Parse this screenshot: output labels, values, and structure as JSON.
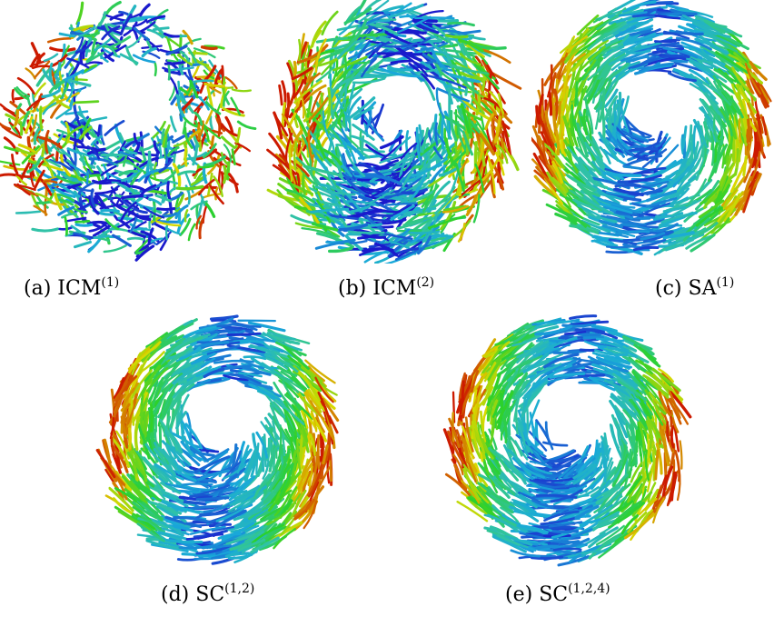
{
  "figure": {
    "panels": [
      {
        "letter": "(a)",
        "name": "ICM",
        "sup": "(1)",
        "style": "noisy"
      },
      {
        "letter": "(b)",
        "name": "ICM",
        "sup": "(2)",
        "style": "semi"
      },
      {
        "letter": "(c)",
        "name": "SA",
        "sup": "(1)",
        "style": "smooth"
      },
      {
        "letter": "(d)",
        "name": "SC",
        "sup": "(1,2)",
        "style": "smooth"
      },
      {
        "letter": "(e)",
        "name": "SC",
        "sup": "(1,2,4)",
        "style": "smooth"
      }
    ],
    "colormap": [
      "#1a1acc",
      "#19a9d9",
      "#31c3a4",
      "#2bd12b",
      "#d9d900",
      "#cc1a00"
    ]
  }
}
